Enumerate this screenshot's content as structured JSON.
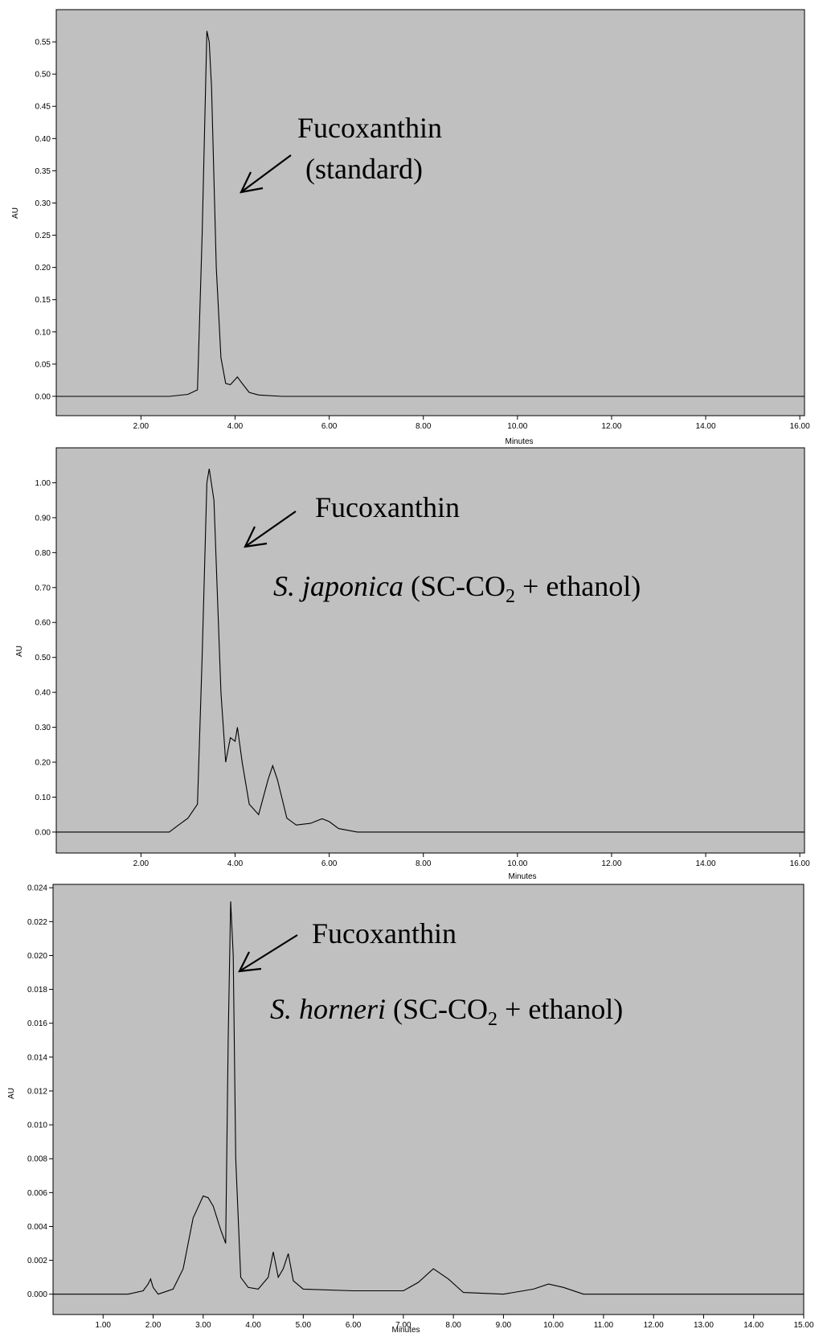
{
  "chart_data": [
    {
      "type": "line",
      "xlabel": "Minutes",
      "ylabel": "AU",
      "xlim": [
        0.2,
        16.1
      ],
      "ylim": [
        -0.03,
        0.6
      ],
      "x_ticks": [
        2,
        4,
        6,
        8,
        10,
        12,
        14,
        16
      ],
      "x_tick_labels": [
        "2.00",
        "4.00",
        "6.00",
        "8.00",
        "10.00",
        "12.00",
        "14.00",
        "16.00"
      ],
      "y_ticks": [
        0,
        0.05,
        0.1,
        0.15,
        0.2,
        0.25,
        0.3,
        0.35,
        0.4,
        0.45,
        0.5,
        0.55
      ],
      "y_tick_labels": [
        "0.00",
        "0.05",
        "0.10",
        "0.15",
        "0.20",
        "0.25",
        "0.30",
        "0.35",
        "0.40",
        "0.45",
        "0.50",
        "0.55"
      ],
      "annotation": {
        "line1": "Fucoxanthin",
        "line2": "(standard)"
      },
      "grid": false,
      "series": [
        {
          "x": [
            0.2,
            2.6,
            3.0,
            3.2,
            3.3,
            3.4,
            3.45,
            3.5,
            3.6,
            3.7,
            3.8,
            3.9,
            4.05,
            4.15,
            4.3,
            4.5,
            5.0,
            8.0,
            12.0,
            16.1
          ],
          "y": [
            0.0,
            0.0,
            0.003,
            0.01,
            0.25,
            0.567,
            0.55,
            0.48,
            0.2,
            0.06,
            0.02,
            0.018,
            0.03,
            0.02,
            0.006,
            0.002,
            0.0,
            0.0,
            0.0,
            0.0
          ]
        }
      ]
    },
    {
      "type": "line",
      "xlabel": "Minutes",
      "ylabel": "AU",
      "xlim": [
        0.2,
        16.1
      ],
      "ylim": [
        -0.06,
        1.1
      ],
      "x_ticks": [
        2,
        4,
        6,
        8,
        10,
        12,
        14,
        16
      ],
      "x_tick_labels": [
        "2.00",
        "4.00",
        "6.00",
        "8.00",
        "10.00",
        "12.00",
        "14.00",
        "16.00"
      ],
      "y_ticks": [
        0,
        0.1,
        0.2,
        0.3,
        0.4,
        0.5,
        0.6,
        0.7,
        0.8,
        0.9,
        1.0
      ],
      "y_tick_labels": [
        "0.00",
        "0.10",
        "0.20",
        "0.30",
        "0.40",
        "0.50",
        "0.60",
        "0.70",
        "0.80",
        "0.90",
        "1.00"
      ],
      "annotation": {
        "line1": "Fucoxanthin",
        "species": "S. japonica",
        "paren_open": " (SC-CO",
        "subscript": "2",
        "paren_close": " + ethanol)"
      },
      "grid": false,
      "series": [
        {
          "x": [
            0.2,
            2.6,
            2.8,
            3.0,
            3.2,
            3.3,
            3.4,
            3.45,
            3.55,
            3.7,
            3.8,
            3.9,
            4.0,
            4.05,
            4.15,
            4.3,
            4.5,
            4.7,
            4.8,
            4.9,
            5.1,
            5.3,
            5.6,
            5.85,
            6.0,
            6.2,
            6.6,
            8.0,
            12.0,
            16.1
          ],
          "y": [
            0.0,
            0.0,
            0.02,
            0.04,
            0.08,
            0.5,
            1.0,
            1.04,
            0.95,
            0.4,
            0.2,
            0.27,
            0.26,
            0.3,
            0.2,
            0.08,
            0.05,
            0.15,
            0.19,
            0.15,
            0.04,
            0.02,
            0.025,
            0.038,
            0.03,
            0.01,
            0.0,
            0.0,
            0.0,
            0.0
          ]
        }
      ]
    },
    {
      "type": "line",
      "xlabel": "Minutes",
      "ylabel": "AU",
      "xlim": [
        0.0,
        15.0
      ],
      "ylim": [
        -0.0012,
        0.0242
      ],
      "x_ticks": [
        1,
        2,
        3,
        4,
        5,
        6,
        7,
        8,
        9,
        10,
        11,
        12,
        13,
        14,
        15
      ],
      "x_tick_labels": [
        "1.00",
        "2.00",
        "3.00",
        "4.00",
        "5.00",
        "6.00",
        "7.00",
        "8.00",
        "9.00",
        "10.00",
        "11.00",
        "12.00",
        "13.00",
        "14.00",
        "15.00"
      ],
      "y_ticks": [
        0,
        0.002,
        0.004,
        0.006,
        0.008,
        0.01,
        0.012,
        0.014,
        0.016,
        0.018,
        0.02,
        0.022,
        0.024
      ],
      "y_tick_labels": [
        "0.000",
        "0.002",
        "0.004",
        "0.006",
        "0.008",
        "0.010",
        "0.012",
        "0.014",
        "0.016",
        "0.018",
        "0.020",
        "0.022",
        "0.024"
      ],
      "annotation": {
        "line1": "Fucoxanthin",
        "species": "S. horneri",
        "paren_open": " (SC-CO",
        "subscript": "2",
        "paren_close": " + ethanol)"
      },
      "grid": false,
      "series": [
        {
          "x": [
            0.0,
            1.5,
            1.8,
            1.9,
            1.95,
            2.0,
            2.1,
            2.4,
            2.6,
            2.8,
            3.0,
            3.1,
            3.2,
            3.35,
            3.45,
            3.5,
            3.55,
            3.6,
            3.65,
            3.75,
            3.9,
            4.1,
            4.3,
            4.4,
            4.5,
            4.6,
            4.7,
            4.8,
            5.0,
            6.0,
            7.0,
            7.3,
            7.6,
            7.9,
            8.2,
            9.0,
            9.6,
            9.9,
            10.2,
            10.6,
            12.0,
            15.0
          ],
          "y": [
            0.0,
            0.0,
            0.0002,
            0.0006,
            0.0009,
            0.0004,
            0.0,
            0.0003,
            0.0015,
            0.0045,
            0.0058,
            0.0057,
            0.0052,
            0.0038,
            0.003,
            0.015,
            0.0232,
            0.02,
            0.008,
            0.001,
            0.0004,
            0.0003,
            0.001,
            0.0025,
            0.001,
            0.0015,
            0.0024,
            0.0008,
            0.0003,
            0.0002,
            0.0002,
            0.0007,
            0.0015,
            0.0009,
            0.0001,
            0.0,
            0.0003,
            0.0006,
            0.0004,
            0.0,
            0.0,
            0.0
          ]
        }
      ]
    }
  ]
}
